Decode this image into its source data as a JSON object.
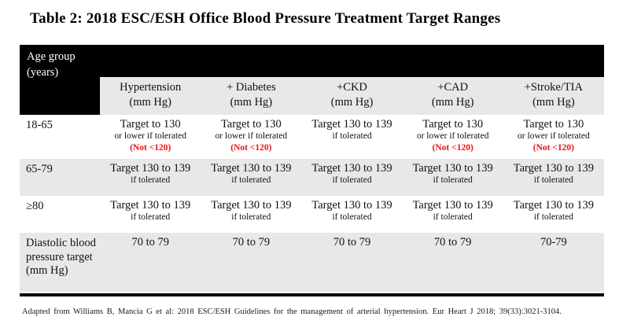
{
  "title": "Table 2: 2018 ESC/ESH Office Blood Pressure Treatment Target Ranges",
  "table": {
    "corner_header": "Age group (years)",
    "columns": [
      {
        "title": "Hypertension",
        "unit": "(mm Hg)"
      },
      {
        "title": "+ Diabetes",
        "unit": "(mm Hg)"
      },
      {
        "title": "+CKD",
        "unit": "(mm Hg)"
      },
      {
        "title": "+CAD",
        "unit": "(mm Hg)"
      },
      {
        "title": "+Stroke/TIA",
        "unit": "(mm Hg)"
      }
    ],
    "rows": [
      {
        "label": "18-65",
        "shaded": false,
        "cells": [
          {
            "main": "Target to 130",
            "sub": "or lower if tolerated",
            "warning": "(Not <120)"
          },
          {
            "main": "Target to 130",
            "sub": "or lower if tolerated",
            "warning": "(Not <120)"
          },
          {
            "main": "Target 130 to 139",
            "sub": "if tolerated"
          },
          {
            "main": "Target to 130",
            "sub": "or lower if tolerated",
            "warning": "(Not <120)"
          },
          {
            "main": "Target to 130",
            "sub": "or lower if tolerated",
            "warning": "(Not <120)"
          }
        ]
      },
      {
        "label": "65-79",
        "shaded": true,
        "cells": [
          {
            "main": "Target 130 to 139",
            "sub": "if tolerated"
          },
          {
            "main": "Target 130 to 139",
            "sub": "if tolerated"
          },
          {
            "main": "Target 130 to 139",
            "sub": "if tolerated"
          },
          {
            "main": "Target 130 to 139",
            "sub": "if tolerated"
          },
          {
            "main": "Target 130 to 139",
            "sub": "if tolerated"
          }
        ]
      },
      {
        "label": "≥80",
        "shaded": false,
        "cells": [
          {
            "main": "Target 130 to 139",
            "sub": "if tolerated"
          },
          {
            "main": "Target 130 to 139",
            "sub": "if tolerated"
          },
          {
            "main": "Target 130 to 139",
            "sub": "if tolerated"
          },
          {
            "main": "Target 130 to 139",
            "sub": "if tolerated"
          },
          {
            "main": "Target 130 to 139",
            "sub": "if tolerated"
          }
        ]
      },
      {
        "label": "Diastolic blood pressure target (mm Hg)",
        "shaded": true,
        "cells": [
          {
            "main": "70 to 79"
          },
          {
            "main": "70 to 79"
          },
          {
            "main": "70 to 79"
          },
          {
            "main": "70 to 79"
          },
          {
            "main": "70-79"
          }
        ]
      }
    ]
  },
  "footnote": "Adapted from Williams B, Mancia G et al: 2018 ESC/ESH Guidelines for the management of arterial hypertension. Eur Heart J 2018; 39(33):3021-3104.",
  "colors": {
    "header_bg": "#000000",
    "header_text": "#ffffff",
    "shaded_row_bg": "#e8e8e8",
    "warning_text": "#ee1111",
    "body_text": "#111111"
  }
}
